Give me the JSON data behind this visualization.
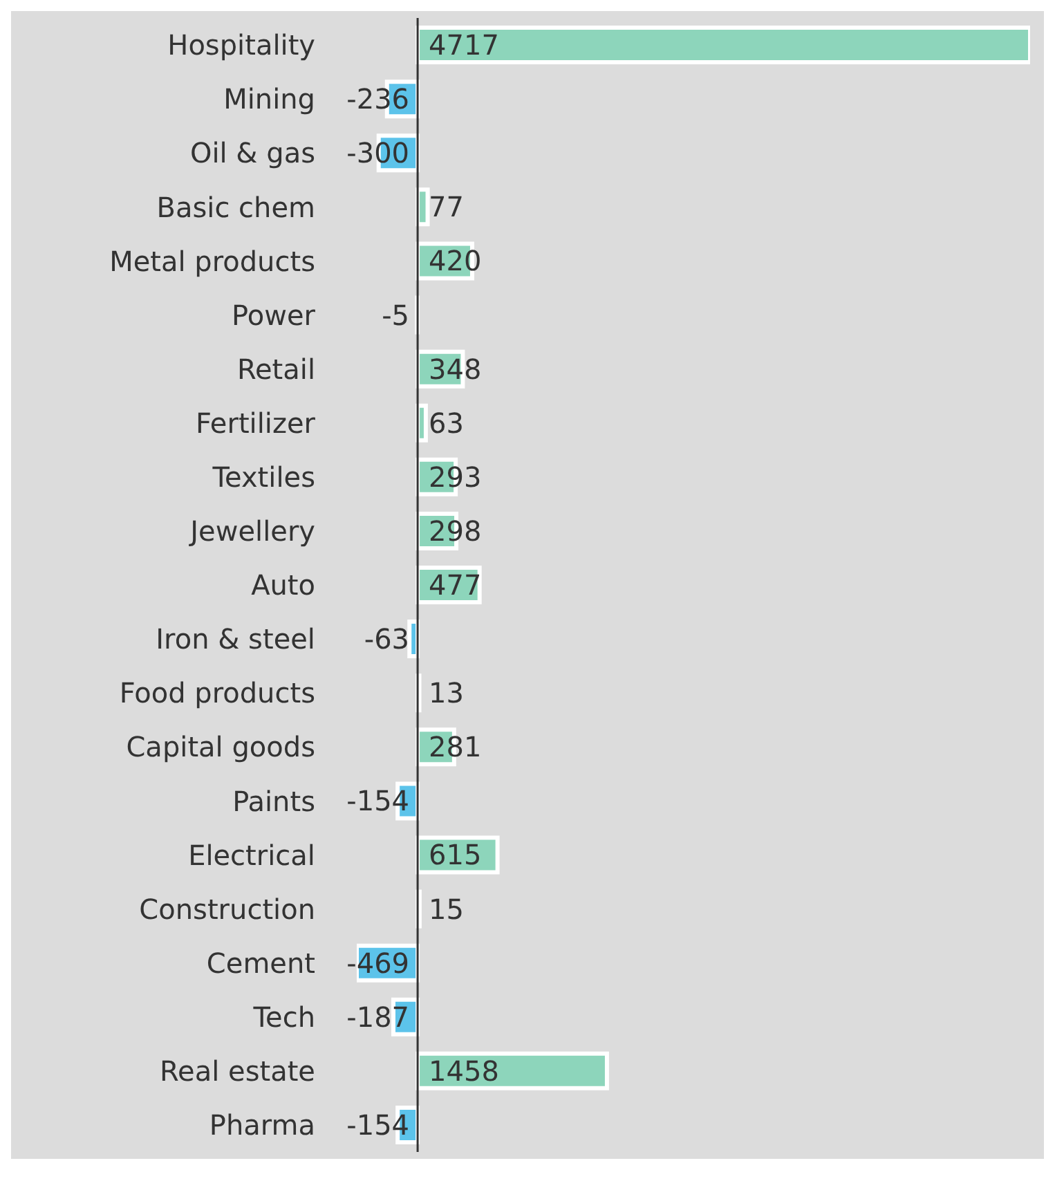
{
  "chart_data": {
    "type": "bar",
    "orientation": "horizontal",
    "data_labels": true,
    "grid": false,
    "legend": false,
    "categories": [
      "Hospitality",
      "Mining",
      "Oil & gas",
      "Basic chem",
      "Metal products",
      "Power",
      "Retail",
      "Fertilizer",
      "Textiles",
      "Jewellery",
      "Auto",
      "Iron & steel",
      "Food products",
      "Capital goods",
      "Paints",
      "Electrical",
      "Construction",
      "Cement",
      "Tech",
      "Real estate",
      "Pharma"
    ],
    "values": [
      4717,
      -236,
      -300,
      77,
      420,
      -5,
      348,
      63,
      293,
      298,
      477,
      -63,
      13,
      281,
      -154,
      615,
      15,
      -469,
      -187,
      1458,
      -154
    ],
    "colors": [
      "#8dd5bb",
      "#5cc3ea",
      "#5cc3ea",
      "#8dd5bb",
      "#8dd5bb",
      "#5cc3ea",
      "#8dd5bb",
      "#8dd5bb",
      "#8dd5bb",
      "#8dd5bb",
      "#8dd5bb",
      "#5cc3ea",
      "#8dd5bb",
      "#8dd5bb",
      "#5cc3ea",
      "#8dd5bb",
      "#8dd5bb",
      "#5cc3ea",
      "#5cc3ea",
      "#8dd5bb",
      "#5cc3ea"
    ]
  }
}
